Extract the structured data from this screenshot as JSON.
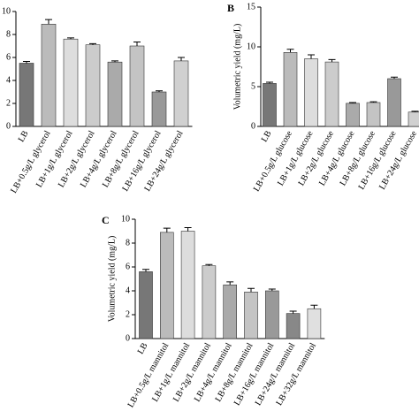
{
  "chart_data": [
    {
      "type": "bar",
      "y2label": null,
      "categories": [
        "LB",
        "LB+0.5g/L glycerol",
        "LB+1g/L glycerol",
        "LB+2g/L glycerol",
        "LB+4g/L glycerol",
        "LB+8g/L glycerol",
        "LB+16g/L glycerol",
        "LB+24g/L glycerol"
      ],
      "values": [
        5.5,
        8.9,
        7.6,
        7.1,
        5.6,
        7.0,
        3.0,
        5.7
      ],
      "errors": [
        0.15,
        0.4,
        0.1,
        0.1,
        0.1,
        0.35,
        0.1,
        0.3
      ],
      "colors": [
        "#777777",
        "#bbbbbb",
        "#dddddd",
        "#cccccc",
        "#aaaaaa",
        "#c4c4c4",
        "#999999",
        "#d0d0d0"
      ],
      "ylim": [
        0,
        10
      ],
      "yticks": [
        0,
        2,
        4,
        6,
        8,
        10
      ]
    },
    {
      "type": "bar",
      "title": "B",
      "ylabel": "Volumetric yield (mg/L)",
      "categories": [
        "LB",
        "LB+0.5g/L glucose",
        "LB+1g/L glucose",
        "LB+2g/L glucose",
        "LB+4g/L glucose",
        "LB+8g/L glucose",
        "LB+16g/L glucose",
        "LB+24g/L glucose"
      ],
      "values": [
        5.4,
        9.3,
        8.5,
        8.1,
        2.9,
        3.0,
        6.0,
        1.8
      ],
      "errors": [
        0.15,
        0.4,
        0.5,
        0.3,
        0.1,
        0.1,
        0.2,
        0.1
      ],
      "colors": [
        "#777777",
        "#bbbbbb",
        "#dddddd",
        "#cccccc",
        "#aaaaaa",
        "#c4c4c4",
        "#999999",
        "#d0d0d0"
      ],
      "ylim": [
        0,
        15
      ],
      "yticks": [
        0,
        5,
        10,
        15
      ]
    },
    {
      "type": "bar",
      "title": "C",
      "ylabel": "Volumetric yield (mg/L)",
      "categories": [
        "LB",
        "LB+0.5g/L mannitol",
        "LB+1g/L mannitol",
        "LB+2g/L mannitol",
        "LB+4g/L mannitol",
        "LB+8g/L mannitol",
        "LB+16g/L mannitol",
        "LB+24g/L mannitol",
        "LB+32g/L mannitol"
      ],
      "values": [
        5.6,
        8.9,
        9.0,
        6.1,
        4.5,
        3.9,
        4.0,
        2.1,
        2.5
      ],
      "errors": [
        0.2,
        0.35,
        0.3,
        0.1,
        0.25,
        0.3,
        0.15,
        0.2,
        0.3
      ],
      "colors": [
        "#777777",
        "#bbbbbb",
        "#dddddd",
        "#cccccc",
        "#aaaaaa",
        "#c4c4c4",
        "#999999",
        "#888888",
        "#e0e0e0"
      ],
      "ylim": [
        0,
        10
      ],
      "yticks": [
        0,
        2,
        4,
        6,
        8,
        10
      ]
    }
  ]
}
